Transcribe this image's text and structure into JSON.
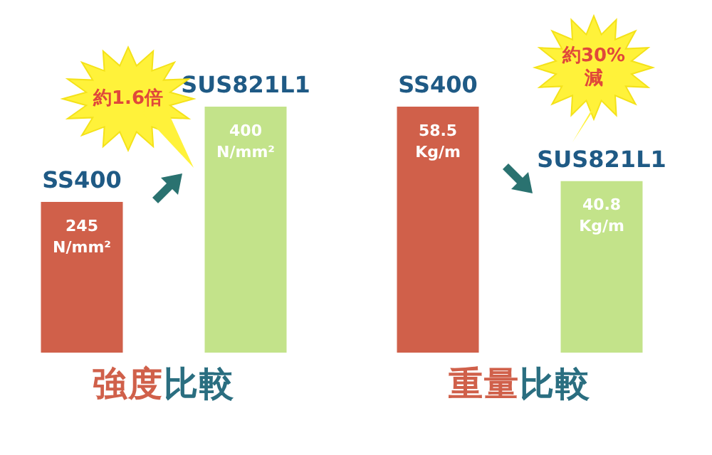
{
  "chart_data": [
    {
      "type": "bar",
      "title": "強度比較",
      "categories": [
        "SS400",
        "SUS821L1"
      ],
      "values": [
        245,
        400
      ],
      "colors": [
        "#d0604a",
        "#c3e38a"
      ],
      "value_labels": [
        "245 N/mm²",
        "400 N/mm²"
      ],
      "annotations": [
        "約1.6倍"
      ]
    },
    {
      "type": "bar",
      "title": "重量比較",
      "categories": [
        "SS400",
        "SUS821L1"
      ],
      "values": [
        58.5,
        40.8
      ],
      "colors": [
        "#d0604a",
        "#c3e38a"
      ],
      "value_labels": [
        "58.5 Kg/m",
        "40.8 Kg/m"
      ],
      "annotations": [
        "約30% 減"
      ]
    }
  ]
}
